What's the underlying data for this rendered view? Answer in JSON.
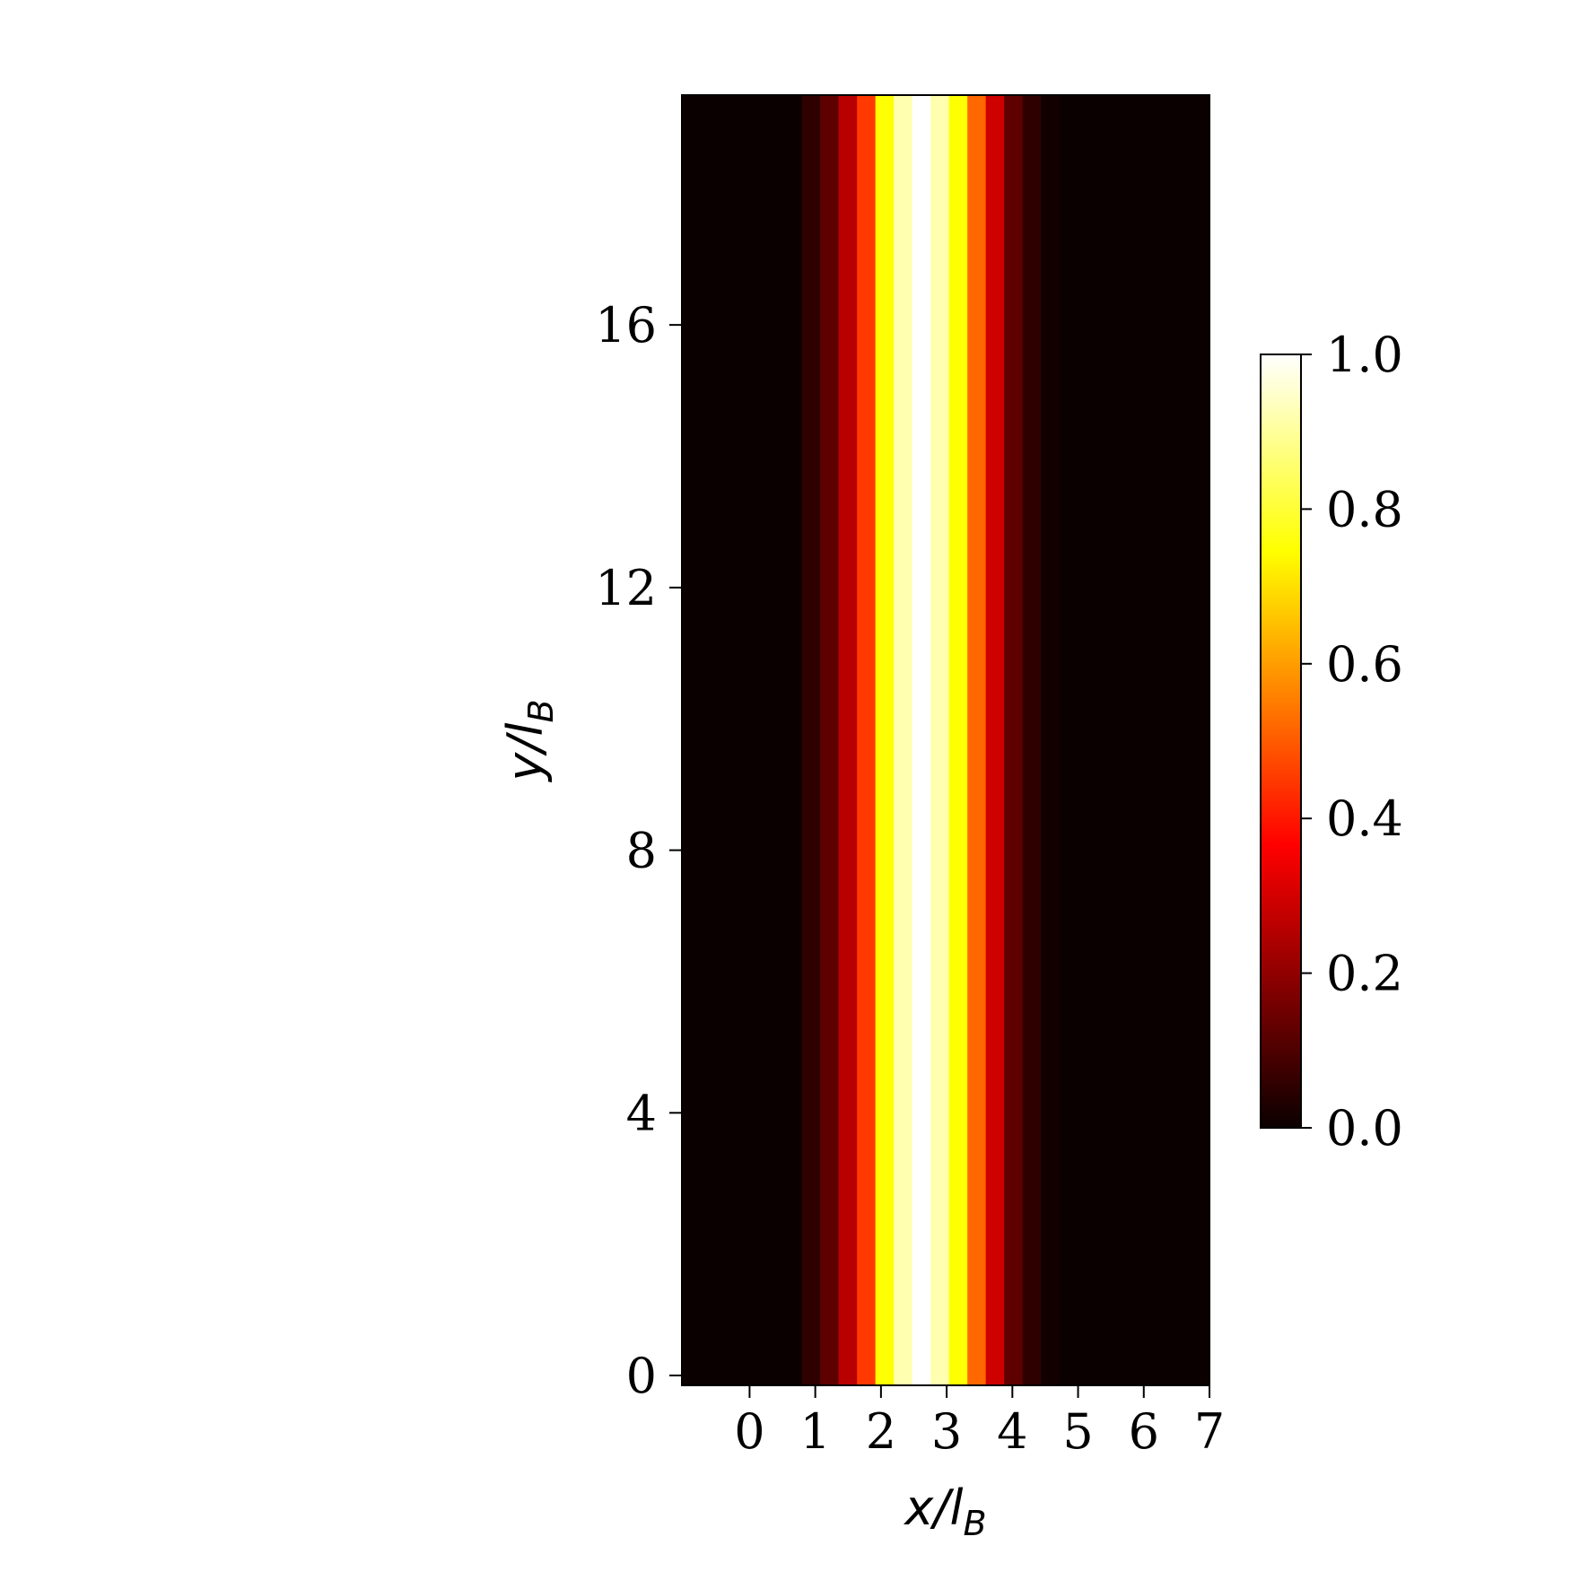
{
  "chart_data": {
    "type": "heatmap",
    "xlabel": "x/l",
    "xlabel_sub": "B",
    "ylabel": "y/l",
    "ylabel_sub": "B",
    "xlim": [
      -1.03,
      7.0
    ],
    "ylim": [
      -0.15,
      19.5
    ],
    "x_ticks": [
      0,
      1,
      2,
      3,
      4,
      5,
      6,
      7
    ],
    "y_ticks": [
      0,
      4,
      8,
      12,
      16
    ],
    "x_tick_labels": [
      "0",
      "1",
      "2",
      "3",
      "4",
      "5",
      "6",
      "7"
    ],
    "y_tick_labels": [
      "0",
      "4",
      "8",
      "12",
      "16"
    ],
    "colormap": "hot",
    "colorbar": {
      "range": [
        0.0,
        1.0
      ],
      "ticks": [
        0.0,
        0.2,
        0.4,
        0.6,
        0.8,
        1.0
      ],
      "tick_labels": [
        "0.0",
        "0.2",
        "0.4",
        "0.6",
        "0.8",
        "1.0"
      ]
    },
    "column_edges": [
      -1.03,
      0.795,
      1.075,
      1.355,
      1.635,
      1.915,
      2.195,
      2.475,
      2.755,
      3.035,
      3.315,
      3.595,
      3.875,
      4.155,
      4.435,
      4.715,
      7.0
    ],
    "column_values": [
      0.0,
      0.05,
      0.12,
      0.25,
      0.45,
      0.75,
      0.92,
      1.0,
      0.92,
      0.75,
      0.52,
      0.28,
      0.12,
      0.05,
      0.01,
      0.0
    ]
  }
}
